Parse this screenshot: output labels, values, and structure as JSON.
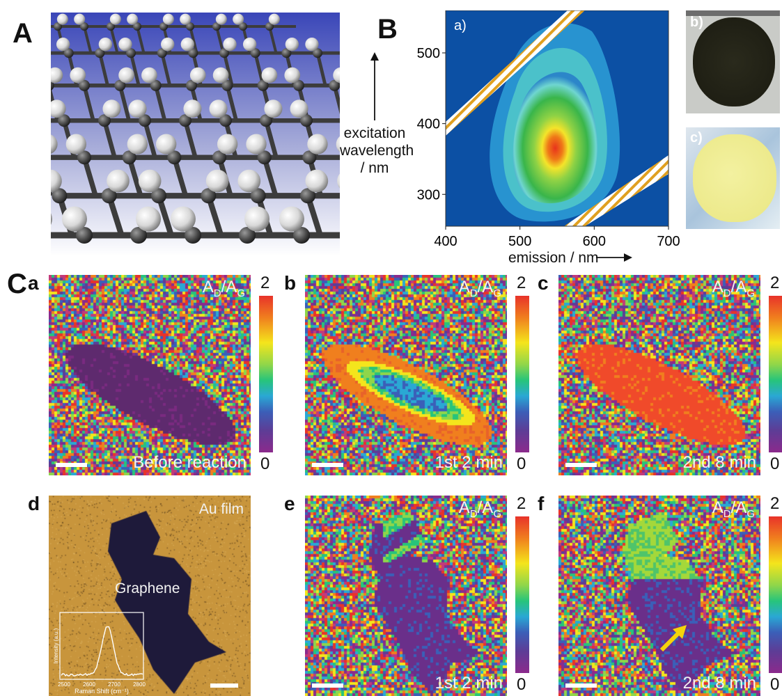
{
  "panel_A": {
    "letter": "A"
  },
  "panel_B": {
    "letter": "B",
    "ylabel_line1": "excitation",
    "ylabel_line2": "wavelength",
    "ylabel_line3": "/ nm",
    "xlabel": "emission / nm",
    "inset_a": "a)",
    "inset_b": "b)",
    "inset_c": "c)"
  },
  "panel_C": {
    "letter": "C",
    "ratio_label": "A",
    "ratio_sub_d": "D",
    "ratio_sep": "/A",
    "ratio_sub_g": "G",
    "colorbar_max": "2",
    "colorbar_min": "0",
    "maps": [
      {
        "letter": "a",
        "caption": "Before reaction"
      },
      {
        "letter": "b",
        "caption": "1st 2 min"
      },
      {
        "letter": "c",
        "caption": "2nd 8 min"
      },
      {
        "letter": "d",
        "caption": "Au film",
        "flake_label": "Graphene",
        "inset_ylabel": "Intensity (a.u.)",
        "inset_xlabel": "Raman Shift (cm⁻¹)",
        "inset_ticks": [
          "2500",
          "2600",
          "2700",
          "2800"
        ]
      },
      {
        "letter": "e",
        "caption": "1st 2 min"
      },
      {
        "letter": "f",
        "caption": "2nd 8 min"
      }
    ]
  },
  "chart_data": {
    "type": "heatmap",
    "title": "",
    "xlabel": "emission / nm",
    "ylabel": "excitation wavelength / nm",
    "xlim": [
      400,
      700
    ],
    "ylim": [
      255,
      560
    ],
    "xticks": [
      400,
      500,
      600,
      700
    ],
    "yticks": [
      300,
      400,
      500
    ],
    "peak": {
      "x": 515,
      "y": 340
    }
  },
  "colors": {
    "map_background": "#0b4fa0",
    "peak": "#e83a1c",
    "raman_background": "#5a1f4f",
    "au_film": "#c8953c",
    "arrow": "#f5d40a"
  }
}
